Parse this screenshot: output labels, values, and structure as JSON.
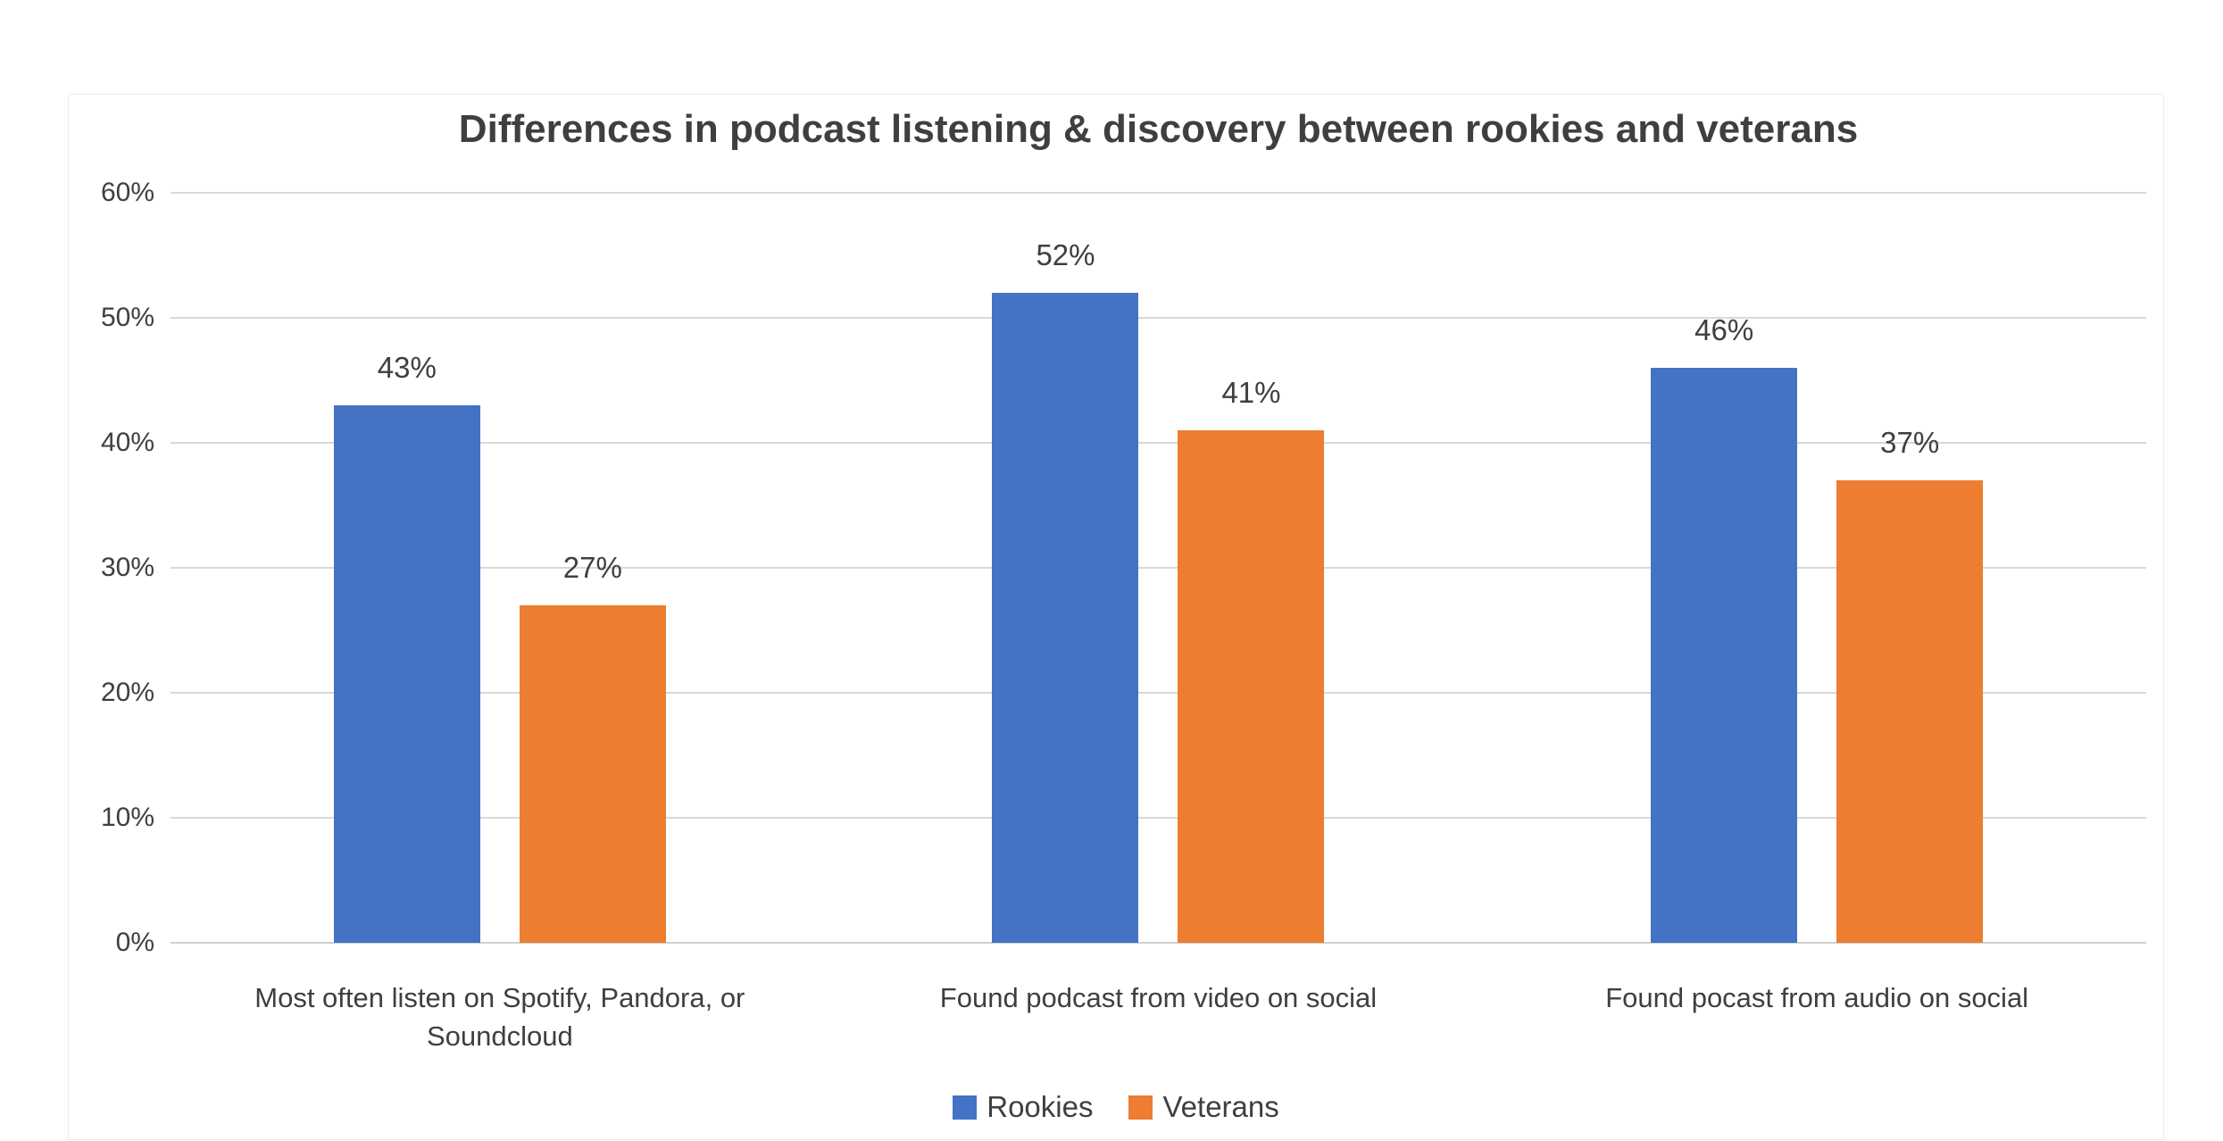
{
  "chart_data": {
    "type": "bar",
    "title": "Differences in podcast listening & discovery between rookies and veterans",
    "categories": [
      "Most often listen on Spotify, Pandora, or Soundcloud",
      "Found podcast from video on social",
      "Found pocast from audio on social"
    ],
    "series": [
      {
        "name": "Rookies",
        "color": "#4472C4",
        "values": [
          43,
          52,
          46
        ],
        "labels": [
          "43%",
          "52%",
          "46%"
        ]
      },
      {
        "name": "Veterans",
        "color": "#ED7D31",
        "values": [
          27,
          41,
          37
        ],
        "labels": [
          "27%",
          "41%",
          "37%"
        ]
      }
    ],
    "y_ticks": [
      "60%",
      "50%",
      "40%",
      "30%",
      "20%",
      "10%",
      "0%"
    ],
    "ylim": [
      0,
      60
    ],
    "grid": true,
    "legend_position": "bottom",
    "colors": {
      "rookies": "#4472C4",
      "veterans": "#ED7D31",
      "gridline": "#D9D9D9",
      "text": "#3F3F3F",
      "container_border": "#ECECEC"
    }
  }
}
